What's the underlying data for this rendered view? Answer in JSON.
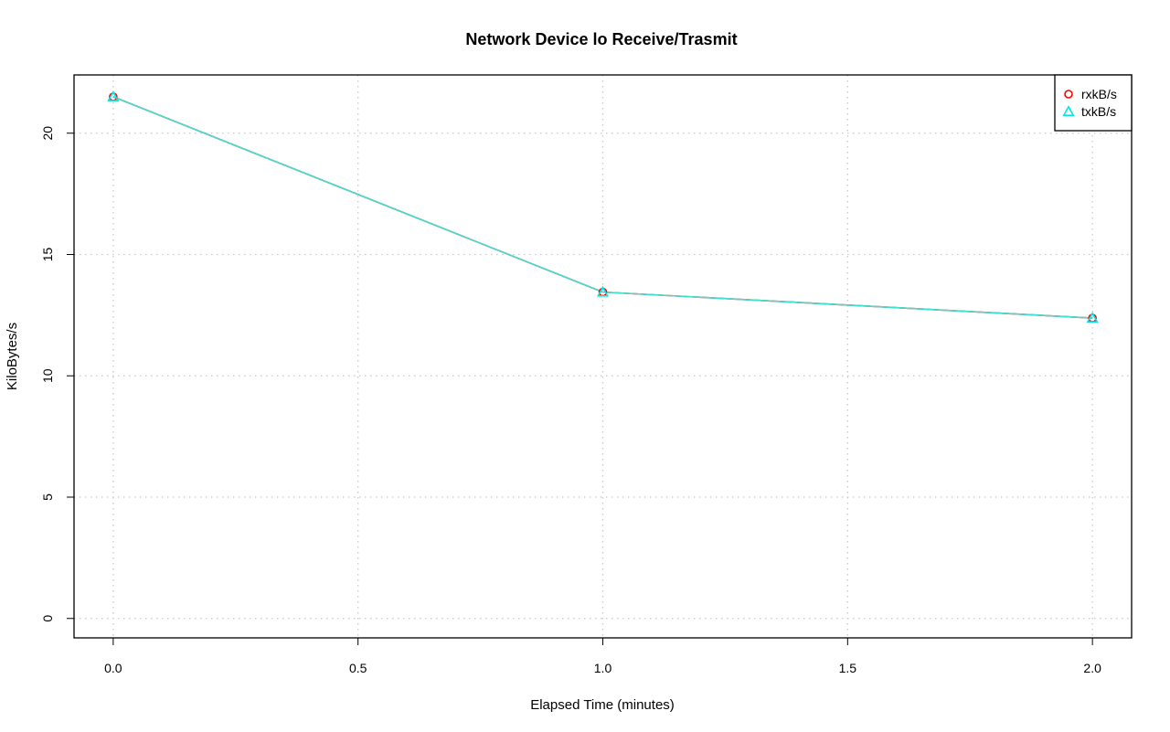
{
  "chart_data": {
    "type": "line",
    "title": "Network Device lo Receive/Trasmit",
    "xlabel": "Elapsed Time (minutes)",
    "ylabel": "KiloBytes/s",
    "x": [
      0.0,
      1.0,
      2.0
    ],
    "xlim": [
      -0.08,
      2.08
    ],
    "ylim": [
      -0.8,
      22.4
    ],
    "x_ticks": [
      0.0,
      0.5,
      1.0,
      1.5,
      2.0
    ],
    "x_tick_labels": [
      "0.0",
      "0.5",
      "1.0",
      "1.5",
      "2.0"
    ],
    "y_ticks": [
      0,
      5,
      10,
      15,
      20
    ],
    "y_tick_labels": [
      "0",
      "5",
      "10",
      "15",
      "20"
    ],
    "grid": true,
    "legend_position": "top-right",
    "series": [
      {
        "name": "rxkB/s",
        "values": [
          21.5,
          13.45,
          12.38
        ],
        "color": "#ff0000",
        "marker": "circle"
      },
      {
        "name": "txkB/s",
        "values": [
          21.5,
          13.45,
          12.38
        ],
        "color": "#00e5e5",
        "marker": "triangle"
      }
    ],
    "line_color": "#40e0d0"
  }
}
